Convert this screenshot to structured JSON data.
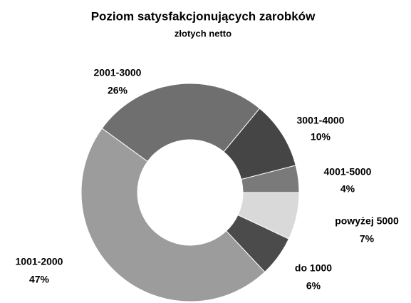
{
  "chart_data": {
    "type": "donut",
    "title": "Poziom satysfakcjonujących zarobków",
    "subtitle": "złotych netto",
    "categories": [
      "2001-3000",
      "3001-4000",
      "4001-5000",
      "powyżej 5000",
      "do 1000",
      "1001-2000"
    ],
    "values": [
      26,
      10,
      4,
      7,
      6,
      47
    ],
    "value_labels": [
      "26%",
      "10%",
      "4%",
      "7%",
      "6%",
      "47%"
    ],
    "colors": [
      "#6f6f6f",
      "#454545",
      "#7a7a7a",
      "#d9d9d9",
      "#4b4b4b",
      "#9c9c9c"
    ]
  }
}
